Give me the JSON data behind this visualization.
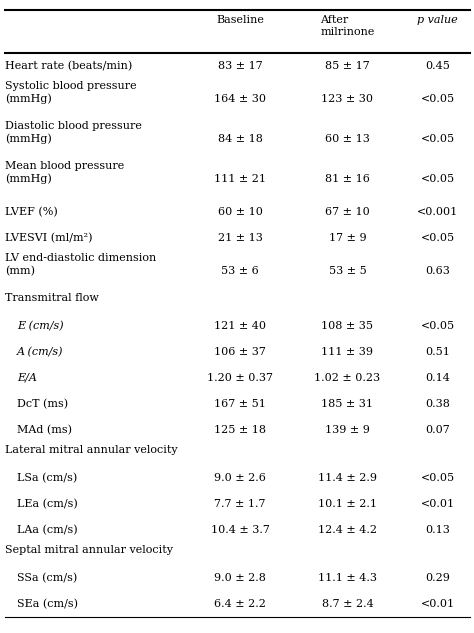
{
  "col_headers": [
    "Baseline",
    "After\nmilrinone",
    "p value"
  ],
  "col_header_italic": [
    false,
    false,
    true
  ],
  "rows": [
    {
      "label": "Heart rate (beats/min)",
      "baseline": "83 ± 17",
      "after": "85 ± 17",
      "p": "0.45",
      "indent": false,
      "is_section": false,
      "italic_label": false,
      "multiline": false
    },
    {
      "label": "Systolic blood pressure\n(mmHg)",
      "baseline": "164 ± 30",
      "after": "123 ± 30",
      "p": "<0.05",
      "indent": false,
      "is_section": false,
      "italic_label": false,
      "multiline": true
    },
    {
      "label": "Diastolic blood pressure\n(mmHg)",
      "baseline": "84 ± 18",
      "after": "60 ± 13",
      "p": "<0.05",
      "indent": false,
      "is_section": false,
      "italic_label": false,
      "multiline": true
    },
    {
      "label": "Mean blood pressure\n(mmHg)",
      "baseline": "111 ± 21",
      "after": "81 ± 16",
      "p": "<0.05",
      "indent": false,
      "is_section": false,
      "italic_label": false,
      "multiline": true
    },
    {
      "label": "LVEF (%)",
      "baseline": "60 ± 10",
      "after": "67 ± 10",
      "p": "<0.001",
      "indent": false,
      "is_section": false,
      "italic_label": false,
      "multiline": false
    },
    {
      "label": "LVESVI (ml/m²)",
      "baseline": "21 ± 13",
      "after": "17 ± 9",
      "p": "<0.05",
      "indent": false,
      "is_section": false,
      "italic_label": false,
      "multiline": false
    },
    {
      "label": "LV end-diastolic dimension\n(mm)",
      "baseline": "53 ± 6",
      "after": "53 ± 5",
      "p": "0.63",
      "indent": false,
      "is_section": false,
      "italic_label": false,
      "multiline": true
    },
    {
      "label": "Transmitral flow",
      "baseline": "",
      "after": "",
      "p": "",
      "indent": false,
      "is_section": true,
      "italic_label": false,
      "multiline": false
    },
    {
      "label": "E (cm/s)",
      "baseline": "121 ± 40",
      "after": "108 ± 35",
      "p": "<0.05",
      "indent": true,
      "is_section": false,
      "italic_label": true,
      "multiline": false
    },
    {
      "label": "A (cm/s)",
      "baseline": "106 ± 37",
      "after": "111 ± 39",
      "p": "0.51",
      "indent": true,
      "is_section": false,
      "italic_label": true,
      "multiline": false
    },
    {
      "label": "E/A",
      "baseline": "1.20 ± 0.37",
      "after": "1.02 ± 0.23",
      "p": "0.14",
      "indent": true,
      "is_section": false,
      "italic_label": true,
      "multiline": false
    },
    {
      "label": "DcT (ms)",
      "baseline": "167 ± 51",
      "after": "185 ± 31",
      "p": "0.38",
      "indent": true,
      "is_section": false,
      "italic_label": false,
      "multiline": false
    },
    {
      "label": "MAd (ms)",
      "baseline": "125 ± 18",
      "after": "139 ± 9",
      "p": "0.07",
      "indent": true,
      "is_section": false,
      "italic_label": false,
      "multiline": false
    },
    {
      "label": "Lateral mitral annular velocity",
      "baseline": "",
      "after": "",
      "p": "",
      "indent": false,
      "is_section": true,
      "italic_label": false,
      "multiline": false
    },
    {
      "label": "LSa (cm/s)",
      "baseline": "9.0 ± 2.6",
      "after": "11.4 ± 2.9",
      "p": "<0.05",
      "indent": true,
      "is_section": false,
      "italic_label": false,
      "multiline": false
    },
    {
      "label": "LEa (cm/s)",
      "baseline": "7.7 ± 1.7",
      "after": "10.1 ± 2.1",
      "p": "<0.01",
      "indent": true,
      "is_section": false,
      "italic_label": false,
      "multiline": false
    },
    {
      "label": "LAa (cm/s)",
      "baseline": "10.4 ± 3.7",
      "after": "12.4 ± 4.2",
      "p": "0.13",
      "indent": true,
      "is_section": false,
      "italic_label": false,
      "multiline": false
    },
    {
      "label": "Septal mitral annular velocity",
      "baseline": "",
      "after": "",
      "p": "",
      "indent": false,
      "is_section": true,
      "italic_label": false,
      "multiline": false
    },
    {
      "label": "SSa (cm/s)",
      "baseline": "9.0 ± 2.8",
      "after": "11.1 ± 4.3",
      "p": "0.29",
      "indent": true,
      "is_section": false,
      "italic_label": false,
      "multiline": false
    },
    {
      "label": "SEa (cm/s)",
      "baseline": "6.4 ± 2.2",
      "after": "8.7 ± 2.4",
      "p": "<0.01",
      "indent": true,
      "is_section": false,
      "italic_label": false,
      "multiline": false
    }
  ],
  "font_size": 8.0,
  "bg_color": "#ffffff",
  "text_color": "#000000",
  "line_color": "#000000"
}
